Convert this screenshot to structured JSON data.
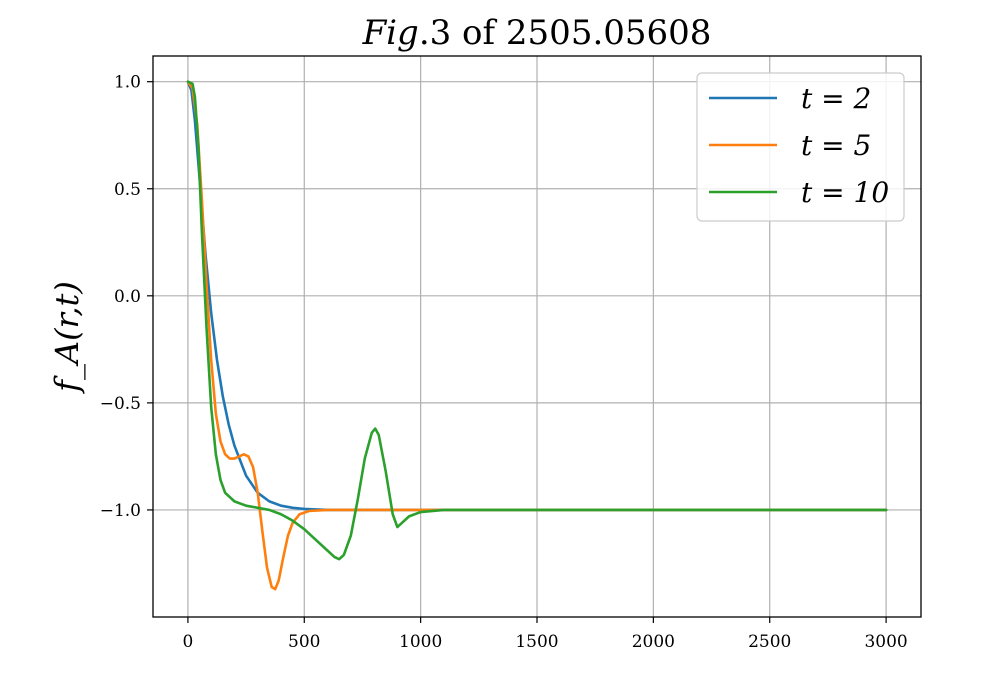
{
  "chart_data": {
    "type": "line",
    "title_parts": [
      {
        "text": "Fig",
        "italic": true
      },
      {
        "text": ".3 of 2505.05608",
        "italic": false
      }
    ],
    "ylabel": "f_A(r,t)",
    "xlabel": "",
    "xlim": [
      -150,
      3150
    ],
    "ylim": [
      -1.5,
      1.12
    ],
    "xticks": [
      0,
      500,
      1000,
      1500,
      2000,
      2500,
      3000
    ],
    "xtick_labels": [
      "0",
      "500",
      "1000",
      "1500",
      "2000",
      "2500",
      "3000"
    ],
    "yticks": [
      1.0,
      0.5,
      0.0,
      -0.5,
      -1.0
    ],
    "ytick_labels": [
      "1.0",
      "0.5",
      "0.0",
      "−0.5",
      "−1.0"
    ],
    "grid": true,
    "legend_position": "top-right",
    "series": [
      {
        "name": "t = 2",
        "color": "#1f77b4",
        "points": [
          [
            0,
            1.0
          ],
          [
            15,
            0.96
          ],
          [
            30,
            0.82
          ],
          [
            50,
            0.55
          ],
          [
            75,
            0.2
          ],
          [
            100,
            -0.08
          ],
          [
            125,
            -0.3
          ],
          [
            150,
            -0.47
          ],
          [
            175,
            -0.6
          ],
          [
            200,
            -0.7
          ],
          [
            250,
            -0.84
          ],
          [
            300,
            -0.92
          ],
          [
            350,
            -0.96
          ],
          [
            400,
            -0.98
          ],
          [
            450,
            -0.99
          ],
          [
            500,
            -0.995
          ],
          [
            600,
            -1.0
          ],
          [
            700,
            -1.0
          ],
          [
            800,
            -1.0
          ],
          [
            1000,
            -1.0
          ],
          [
            1500,
            -1.0
          ],
          [
            2000,
            -1.0
          ],
          [
            2500,
            -1.0
          ],
          [
            3000,
            -1.0
          ]
        ]
      },
      {
        "name": "t = 5",
        "color": "#ff7f0e",
        "points": [
          [
            0,
            1.0
          ],
          [
            20,
            0.97
          ],
          [
            40,
            0.8
          ],
          [
            60,
            0.45
          ],
          [
            80,
            0.05
          ],
          [
            100,
            -0.3
          ],
          [
            120,
            -0.55
          ],
          [
            140,
            -0.68
          ],
          [
            160,
            -0.74
          ],
          [
            180,
            -0.76
          ],
          [
            200,
            -0.76
          ],
          [
            220,
            -0.75
          ],
          [
            240,
            -0.74
          ],
          [
            260,
            -0.75
          ],
          [
            280,
            -0.8
          ],
          [
            300,
            -0.92
          ],
          [
            320,
            -1.1
          ],
          [
            340,
            -1.27
          ],
          [
            360,
            -1.36
          ],
          [
            375,
            -1.37
          ],
          [
            390,
            -1.33
          ],
          [
            410,
            -1.22
          ],
          [
            430,
            -1.12
          ],
          [
            450,
            -1.06
          ],
          [
            480,
            -1.02
          ],
          [
            520,
            -1.005
          ],
          [
            600,
            -1.0
          ],
          [
            800,
            -1.0
          ],
          [
            1000,
            -1.0
          ],
          [
            1500,
            -1.0
          ],
          [
            2000,
            -1.0
          ],
          [
            2500,
            -1.0
          ],
          [
            3000,
            -1.0
          ]
        ]
      },
      {
        "name": "t = 10",
        "color": "#2ca02c",
        "points": [
          [
            0,
            1.0
          ],
          [
            20,
            0.99
          ],
          [
            30,
            0.93
          ],
          [
            45,
            0.7
          ],
          [
            60,
            0.3
          ],
          [
            80,
            -0.15
          ],
          [
            100,
            -0.52
          ],
          [
            120,
            -0.74
          ],
          [
            140,
            -0.86
          ],
          [
            160,
            -0.92
          ],
          [
            200,
            -0.96
          ],
          [
            250,
            -0.98
          ],
          [
            300,
            -0.99
          ],
          [
            350,
            -1.0
          ],
          [
            400,
            -1.02
          ],
          [
            450,
            -1.05
          ],
          [
            500,
            -1.09
          ],
          [
            550,
            -1.14
          ],
          [
            600,
            -1.19
          ],
          [
            630,
            -1.22
          ],
          [
            650,
            -1.23
          ],
          [
            670,
            -1.21
          ],
          [
            700,
            -1.12
          ],
          [
            730,
            -0.95
          ],
          [
            760,
            -0.76
          ],
          [
            790,
            -0.64
          ],
          [
            805,
            -0.62
          ],
          [
            820,
            -0.65
          ],
          [
            850,
            -0.82
          ],
          [
            880,
            -1.02
          ],
          [
            900,
            -1.08
          ],
          [
            920,
            -1.06
          ],
          [
            950,
            -1.03
          ],
          [
            1000,
            -1.01
          ],
          [
            1100,
            -1.0
          ],
          [
            1200,
            -1.0
          ],
          [
            1500,
            -1.0
          ],
          [
            2000,
            -1.0
          ],
          [
            2500,
            -1.0
          ],
          [
            3000,
            -1.0
          ]
        ]
      }
    ]
  }
}
